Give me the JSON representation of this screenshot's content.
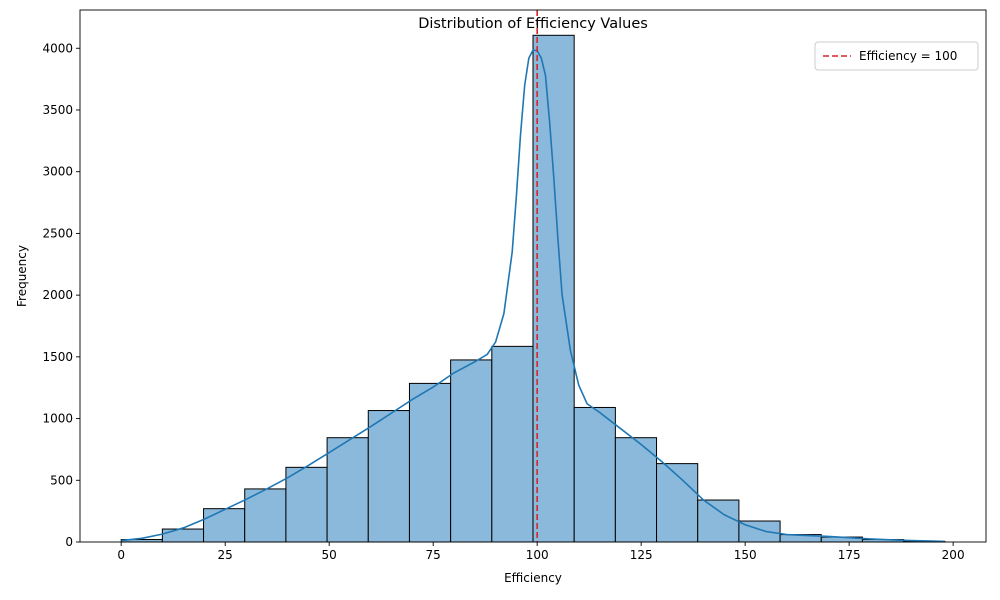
{
  "chart_data": {
    "type": "bar",
    "title": "Distribution of Efficiency Values",
    "xlabel": "Efficiency",
    "ylabel": "Frequency",
    "xlim": [
      -9.9,
      207.9
    ],
    "ylim": [
      0,
      4310
    ],
    "x_ticks": [
      0,
      25,
      50,
      75,
      100,
      125,
      150,
      175,
      200
    ],
    "y_ticks": [
      0,
      500,
      1000,
      1500,
      2000,
      2500,
      3000,
      3500,
      4000
    ],
    "bin_edges": [
      0,
      9.9,
      19.8,
      29.7,
      39.6,
      49.5,
      59.4,
      69.3,
      79.2,
      89.1,
      99.0,
      108.9,
      118.8,
      128.7,
      138.6,
      148.5,
      158.4,
      168.3,
      178.2,
      188.1,
      198.0
    ],
    "values": [
      20,
      105,
      270,
      430,
      605,
      845,
      1065,
      1285,
      1475,
      1585,
      4105,
      1090,
      845,
      635,
      340,
      170,
      60,
      40,
      20,
      5
    ],
    "bar_color": "#8ab9db",
    "bar_edge_color": "#000000",
    "kde": {
      "color": "#1f77b4",
      "x": [
        0,
        5,
        10,
        15,
        20,
        25,
        30,
        35,
        40,
        45,
        50,
        55,
        60,
        65,
        70,
        75,
        80,
        85,
        88,
        90,
        92,
        94,
        95,
        96,
        97,
        98,
        99,
        100,
        101,
        102,
        103,
        104,
        105,
        106,
        108,
        110,
        112,
        115,
        120,
        125,
        130,
        135,
        140,
        145,
        150,
        155,
        160,
        165,
        170,
        175,
        180,
        185,
        190,
        195,
        198
      ],
      "y": [
        12,
        30,
        65,
        115,
        185,
        265,
        345,
        430,
        520,
        620,
        725,
        830,
        935,
        1045,
        1155,
        1255,
        1370,
        1460,
        1520,
        1620,
        1850,
        2350,
        2800,
        3300,
        3700,
        3920,
        3985,
        3980,
        3920,
        3780,
        3400,
        2950,
        2450,
        2000,
        1550,
        1270,
        1120,
        1050,
        920,
        790,
        650,
        500,
        340,
        220,
        140,
        85,
        60,
        52,
        45,
        35,
        25,
        18,
        12,
        8,
        5
      ]
    },
    "reference_line": {
      "x": 100,
      "color": "#d62728",
      "label": "Efficiency = 100"
    },
    "legend_position": "top-right",
    "grid": false
  }
}
